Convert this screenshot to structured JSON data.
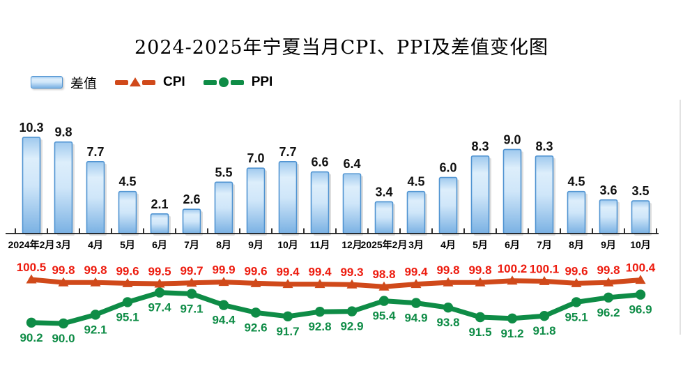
{
  "title": "2024-2025年宁夏当月CPI、PPI及差值变化图",
  "legend": {
    "bar_label": "差值",
    "cpi_label": "CPI",
    "ppi_label": "PPI"
  },
  "colors": {
    "bar_border": "#4f93d1",
    "bar_gradient_top": "#9fc9ee",
    "bar_gradient_light": "#ddeefb",
    "bar_gradient_bottom": "#7ab1e3",
    "bar_shadow": "#bdbdbd",
    "bar_value_label": "#111111",
    "axis": "#1a1a1a",
    "cpi_line": "#d0491a",
    "cpi_label": "#ed1c0f",
    "ppi_line": "#0e8c46",
    "ppi_label": "#0e8c46",
    "plot_right_border": "#d9d9d9"
  },
  "chart_data": {
    "type": "bar",
    "subtype": "combo bar + two lines (secondary axis)",
    "title": "2024-2025年宁夏当月CPI、PPI及差值变化图",
    "xlabel": "",
    "ylabel": "",
    "grid": false,
    "legend_position": "top-left",
    "categories": [
      "2024年2月",
      "3月",
      "4月",
      "5月",
      "6月",
      "7月",
      "8月",
      "9月",
      "10月",
      "11月",
      "12月",
      "2025年2月",
      "3月",
      "4月",
      "5月",
      "6月",
      "7月",
      "8月",
      "9月",
      "10月"
    ],
    "series": [
      {
        "name": "差值",
        "type": "bar",
        "values": [
          10.3,
          9.8,
          7.7,
          4.5,
          2.1,
          2.6,
          5.5,
          7.0,
          7.7,
          6.6,
          6.4,
          3.4,
          4.5,
          6.0,
          8.3,
          9.0,
          8.3,
          4.5,
          3.6,
          3.5
        ]
      },
      {
        "name": "CPI",
        "type": "line",
        "marker": "triangle",
        "values": [
          100.5,
          99.8,
          99.8,
          99.6,
          99.5,
          99.7,
          99.9,
          99.6,
          99.4,
          99.4,
          99.3,
          98.8,
          99.4,
          99.8,
          99.8,
          100.2,
          100.1,
          99.6,
          99.8,
          100.4
        ]
      },
      {
        "name": "PPI",
        "type": "line",
        "marker": "circle",
        "values": [
          90.2,
          90.0,
          92.1,
          95.1,
          97.4,
          97.1,
          94.4,
          92.6,
          91.7,
          92.8,
          92.9,
          95.4,
          94.9,
          93.8,
          91.5,
          91.2,
          91.8,
          95.1,
          96.2,
          96.9
        ]
      }
    ]
  }
}
